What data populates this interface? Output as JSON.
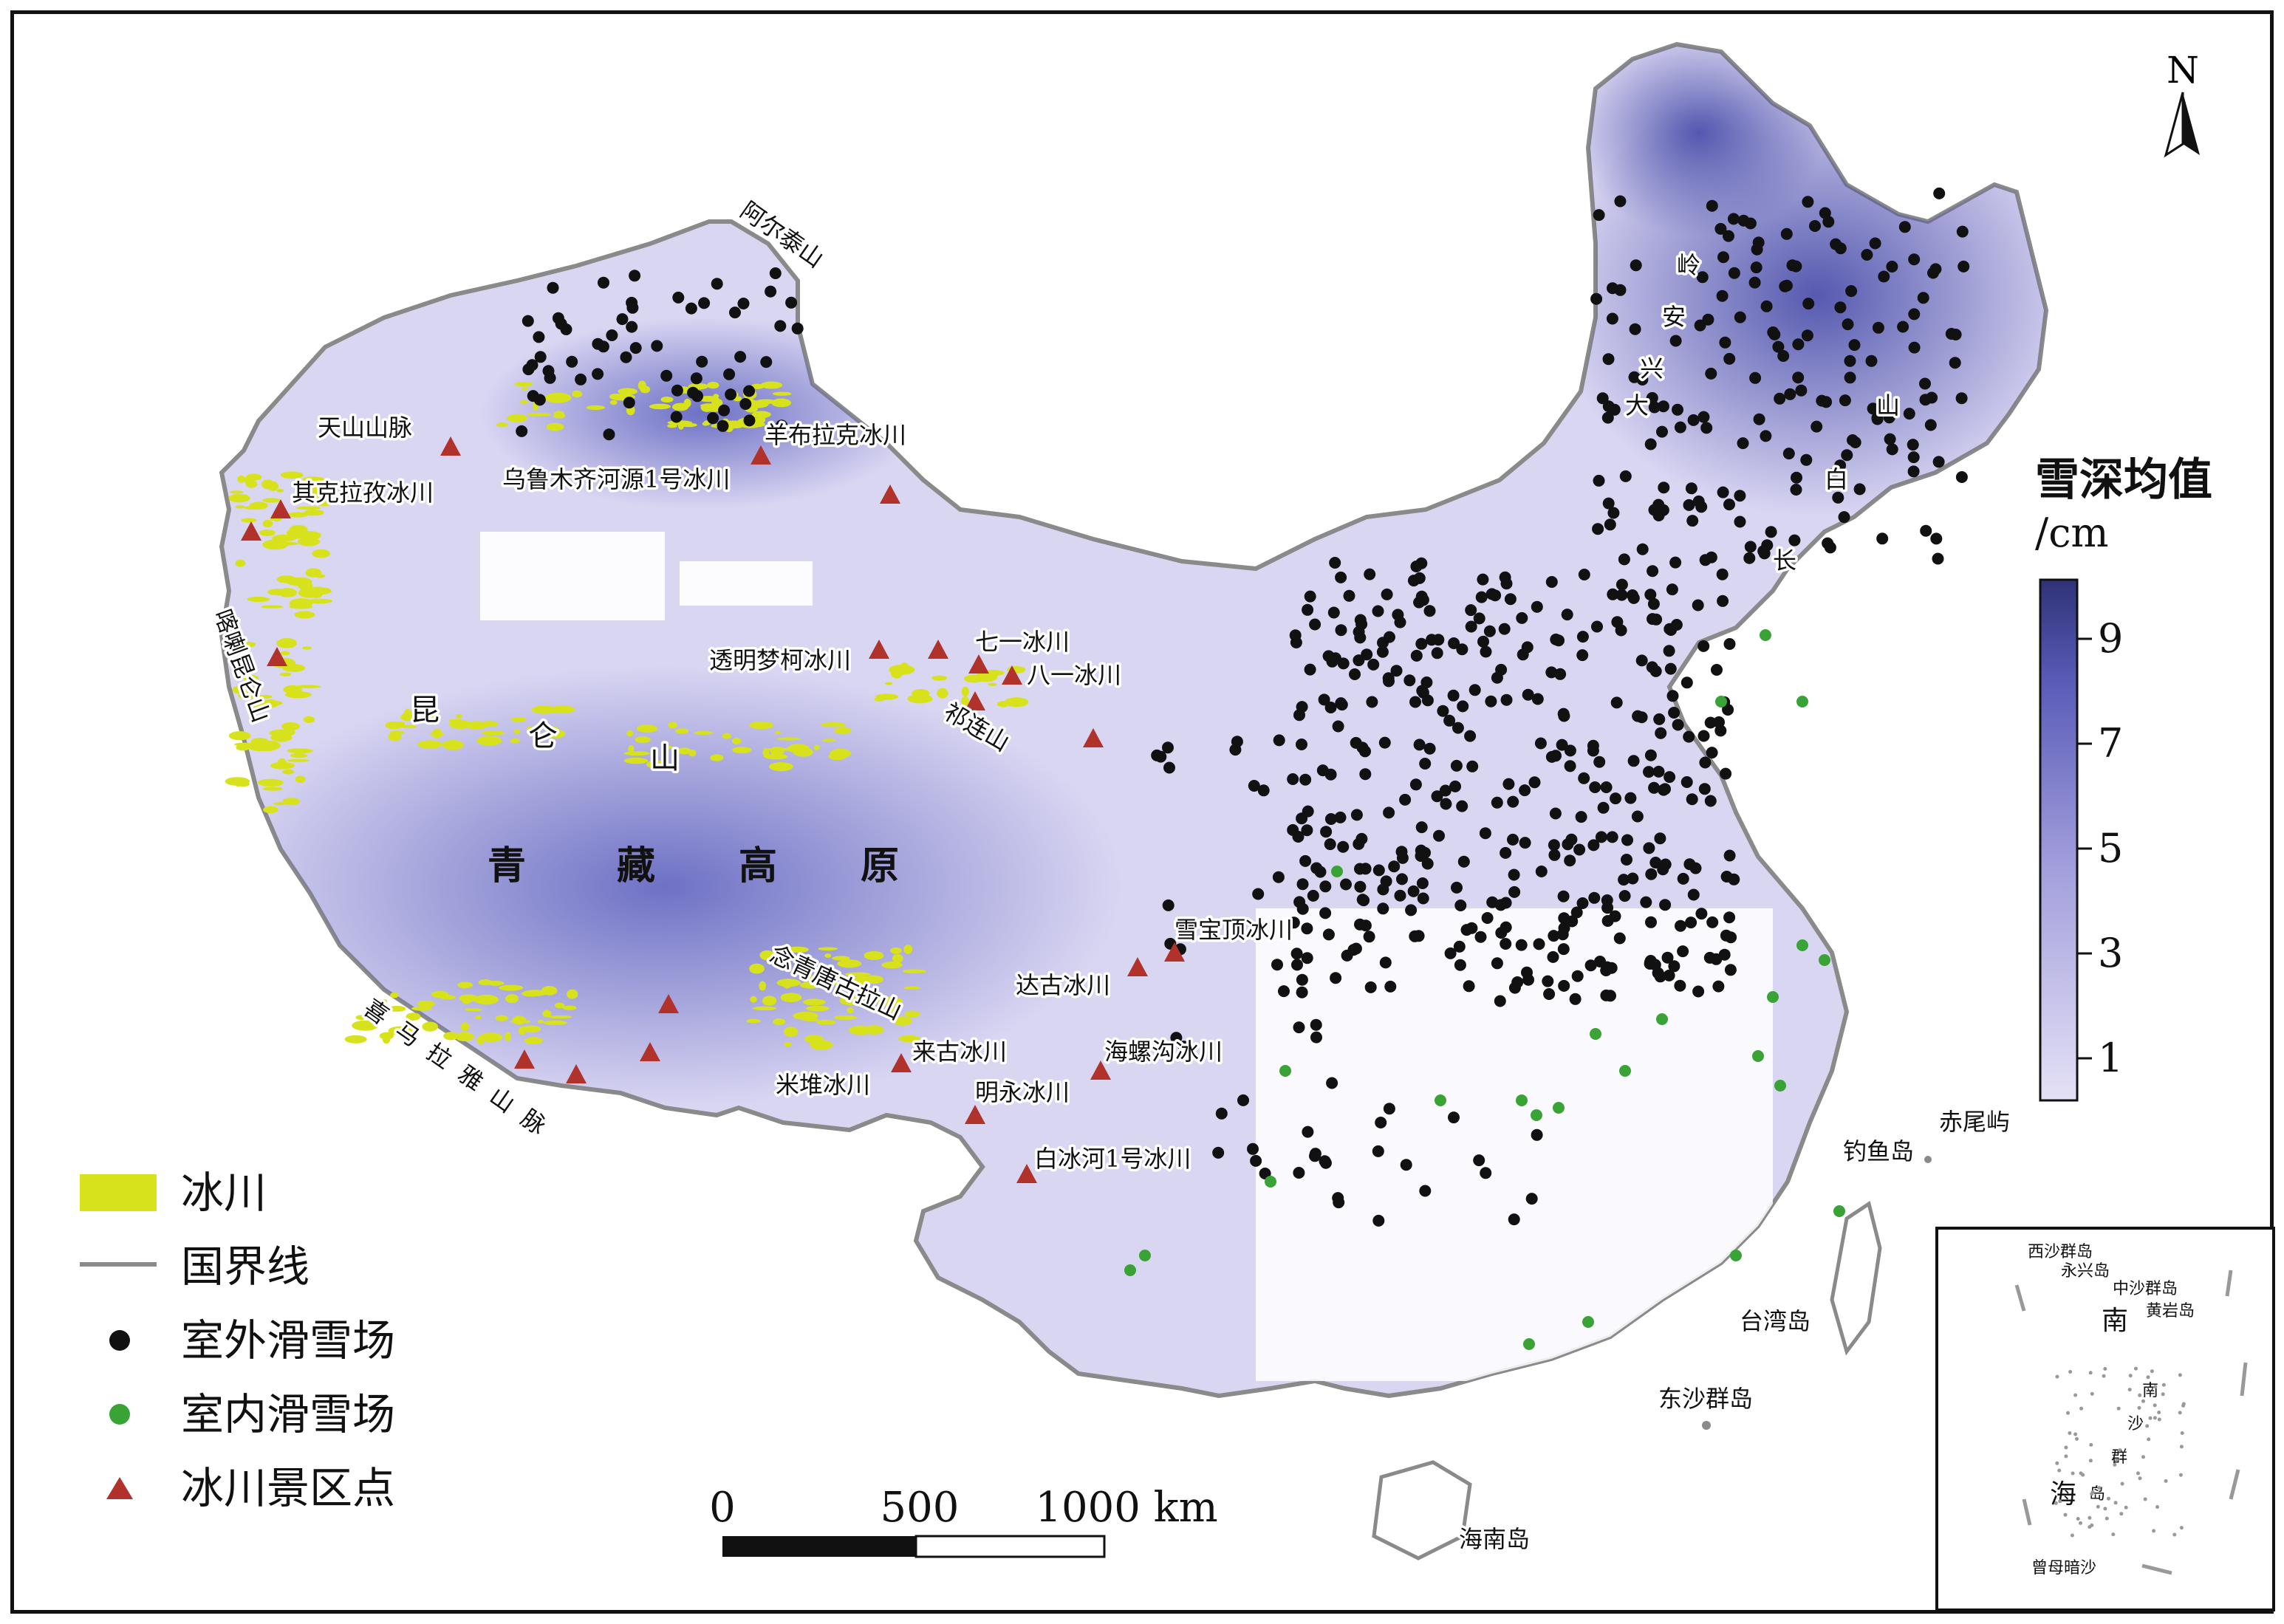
{
  "map": {
    "north_label": "N",
    "colors": {
      "snow_low": "#d9d6f2",
      "snow_mid": "#9f9ad8",
      "snow_high": "#3c3f9c",
      "glacier": "#d8e21c",
      "border": "#8a8a8a",
      "outdoor": "#111111",
      "indoor": "#3aa335",
      "scenic": "#b1322a"
    },
    "region_labels": {
      "altai": "阿尔泰山",
      "tianshan": "天山山脉",
      "karakoram": "喀喇昆仑山",
      "kunlun_1": "昆",
      "kunlun_2": "仑",
      "kunlun_3": "山",
      "plateau_1": "青",
      "plateau_2": "藏",
      "plateau_3": "高",
      "plateau_4": "原",
      "himalaya": "喜马拉雅山脉",
      "nyainqentanglha": "念青唐古拉山",
      "qilian": "祁连山",
      "daxinganling_1": "大",
      "daxinganling_2": "兴",
      "daxinganling_3": "安",
      "daxinganling_4": "岭",
      "changbai_1": "长",
      "changbai_2": "白",
      "changbai_3": "山"
    },
    "glacier_labels": {
      "keqilagu": "其克拉孜冰川",
      "urumqi1": "乌鲁木齐河源1号冰川",
      "yangbulake": "羊布拉克冰川",
      "toumingmengke": "透明梦柯冰川",
      "qiyi": "七一冰川",
      "bayi": "八一冰川",
      "xuebaoding": "雪宝顶冰川",
      "dagu": "达古冰川",
      "hailuogou": "海螺沟冰川",
      "laigu": "来古冰川",
      "midui": "米堆冰川",
      "mingyong": "明永冰川",
      "baibinghe1": "白冰河1号冰川"
    },
    "island_labels": {
      "diaoyu": "钓鱼岛",
      "chiwei": "赤尾屿",
      "taiwan": "台湾岛",
      "dongsha": "东沙群岛",
      "hainan": "海南岛"
    }
  },
  "legend": {
    "glacier": "冰川",
    "border": "国界线",
    "outdoor": "室外滑雪场",
    "indoor": "室内滑雪场",
    "scenic": "冰川景区点"
  },
  "scale_bar": {
    "labels": [
      "0",
      "500",
      "1000 km"
    ]
  },
  "colorbar": {
    "title": "雪深均值",
    "unit": "/cm",
    "ticks": [
      "9",
      "7",
      "5",
      "3",
      "1"
    ]
  },
  "inset": {
    "xisha": "西沙群岛",
    "yongxing": "永兴岛",
    "zhongsha": "中沙群岛",
    "huangyan": "黄岩岛",
    "nan_1": "南",
    "nansha_1": "南",
    "nansha_2": "沙",
    "nansha_3": "群",
    "nansha_4": "岛",
    "hai": "海",
    "zengmu": "曾母暗沙"
  }
}
